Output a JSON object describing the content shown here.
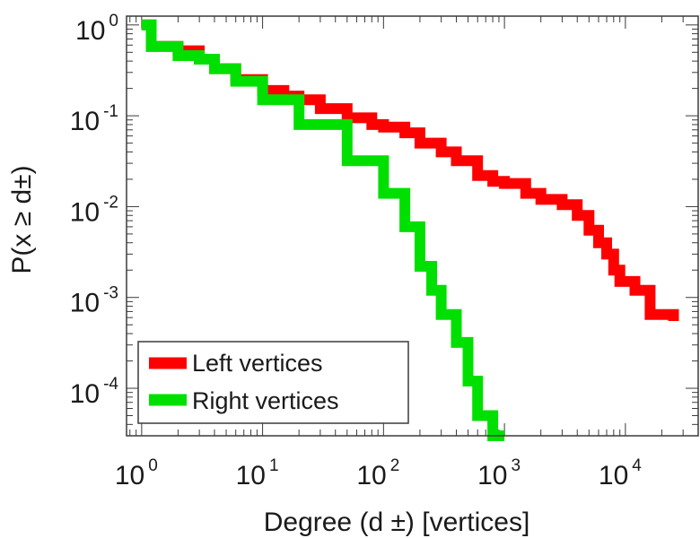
{
  "chart_data": {
    "type": "line",
    "title": "",
    "xlabel": "Degree (d ±) [vertices]",
    "ylabel": "P(x ≥ d±)",
    "xscale": "log",
    "yscale": "log",
    "xlim": [
      0.75,
      40000
    ],
    "ylim": [
      3e-05,
      1.25
    ],
    "x_ticks": [
      {
        "value": 1,
        "base": "10",
        "exp": "0"
      },
      {
        "value": 10,
        "base": "10",
        "exp": "1"
      },
      {
        "value": 100,
        "base": "10",
        "exp": "2"
      },
      {
        "value": 1000,
        "base": "10",
        "exp": "3"
      },
      {
        "value": 10000,
        "base": "10",
        "exp": "4"
      }
    ],
    "y_ticks": [
      {
        "value": 1,
        "base": "10",
        "exp": "0"
      },
      {
        "value": 0.1,
        "base": "10",
        "exp": "-1"
      },
      {
        "value": 0.01,
        "base": "10",
        "exp": "-2"
      },
      {
        "value": 0.001,
        "base": "10",
        "exp": "-3"
      },
      {
        "value": 0.0001,
        "base": "10",
        "exp": "-4"
      }
    ],
    "legend": {
      "position": "bottom-left"
    },
    "series": [
      {
        "name": "Left vertices",
        "color": "#ff0000",
        "step": true,
        "points": [
          [
            1,
            1
          ],
          [
            1.2,
            0.58
          ],
          [
            2,
            0.52
          ],
          [
            3,
            0.42
          ],
          [
            4,
            0.33
          ],
          [
            6,
            0.25
          ],
          [
            10,
            0.19
          ],
          [
            15,
            0.165
          ],
          [
            20,
            0.15
          ],
          [
            30,
            0.12
          ],
          [
            50,
            0.095
          ],
          [
            80,
            0.08
          ],
          [
            100,
            0.075
          ],
          [
            150,
            0.065
          ],
          [
            200,
            0.05
          ],
          [
            300,
            0.04
          ],
          [
            400,
            0.032
          ],
          [
            600,
            0.022
          ],
          [
            800,
            0.019
          ],
          [
            1000,
            0.018
          ],
          [
            1500,
            0.014
          ],
          [
            2000,
            0.012
          ],
          [
            3000,
            0.0105
          ],
          [
            4000,
            0.008
          ],
          [
            5000,
            0.0055
          ],
          [
            6000,
            0.004
          ],
          [
            7000,
            0.003
          ],
          [
            8000,
            0.002
          ],
          [
            9000,
            0.0015
          ],
          [
            12000,
            0.0012
          ],
          [
            16000,
            0.00065
          ],
          [
            25000,
            0.00055
          ]
        ]
      },
      {
        "name": "Right vertices",
        "color": "#00e000",
        "step": true,
        "points": [
          [
            1,
            1
          ],
          [
            1.2,
            0.58
          ],
          [
            2,
            0.46
          ],
          [
            3,
            0.42
          ],
          [
            4,
            0.33
          ],
          [
            6,
            0.24
          ],
          [
            10,
            0.15
          ],
          [
            20,
            0.08
          ],
          [
            50,
            0.032
          ],
          [
            100,
            0.014
          ],
          [
            150,
            0.006
          ],
          [
            200,
            0.0022
          ],
          [
            250,
            0.0012
          ],
          [
            300,
            0.00065
          ],
          [
            400,
            0.00032
          ],
          [
            500,
            0.00012
          ],
          [
            600,
            5e-05
          ],
          [
            800,
            3e-05
          ],
          [
            1000,
            3e-05
          ]
        ]
      }
    ]
  }
}
